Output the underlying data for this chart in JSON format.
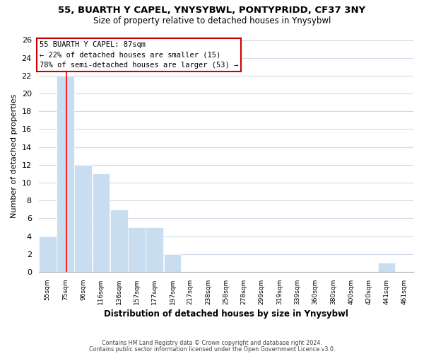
{
  "title1": "55, BUARTH Y CAPEL, YNYSYBWL, PONTYPRIDD, CF37 3NY",
  "title2": "Size of property relative to detached houses in Ynysybwl",
  "xlabel": "Distribution of detached houses by size in Ynysybwl",
  "ylabel": "Number of detached properties",
  "bar_labels": [
    "55sqm",
    "75sqm",
    "96sqm",
    "116sqm",
    "136sqm",
    "157sqm",
    "177sqm",
    "197sqm",
    "217sqm",
    "238sqm",
    "258sqm",
    "278sqm",
    "299sqm",
    "319sqm",
    "339sqm",
    "360sqm",
    "380sqm",
    "400sqm",
    "420sqm",
    "441sqm",
    "461sqm"
  ],
  "bar_values": [
    4,
    22,
    12,
    11,
    7,
    5,
    5,
    2,
    0,
    0,
    0,
    0,
    0,
    0,
    0,
    0,
    0,
    0,
    0,
    1,
    0
  ],
  "bar_color": "#c8ddf0",
  "background_color": "#ffffff",
  "grid_color": "#d0dbe8",
  "annotation_line1": "55 BUARTH Y CAPEL: 87sqm",
  "annotation_line2": "← 22% of detached houses are smaller (15)",
  "annotation_line3": "78% of semi-detached houses are larger (53) →",
  "red_line_x": 1.05,
  "ylim": [
    0,
    26
  ],
  "yticks": [
    0,
    2,
    4,
    6,
    8,
    10,
    12,
    14,
    16,
    18,
    20,
    22,
    24,
    26
  ],
  "footer1": "Contains HM Land Registry data © Crown copyright and database right 2024.",
  "footer2": "Contains public sector information licensed under the Open Government Licence v3.0."
}
